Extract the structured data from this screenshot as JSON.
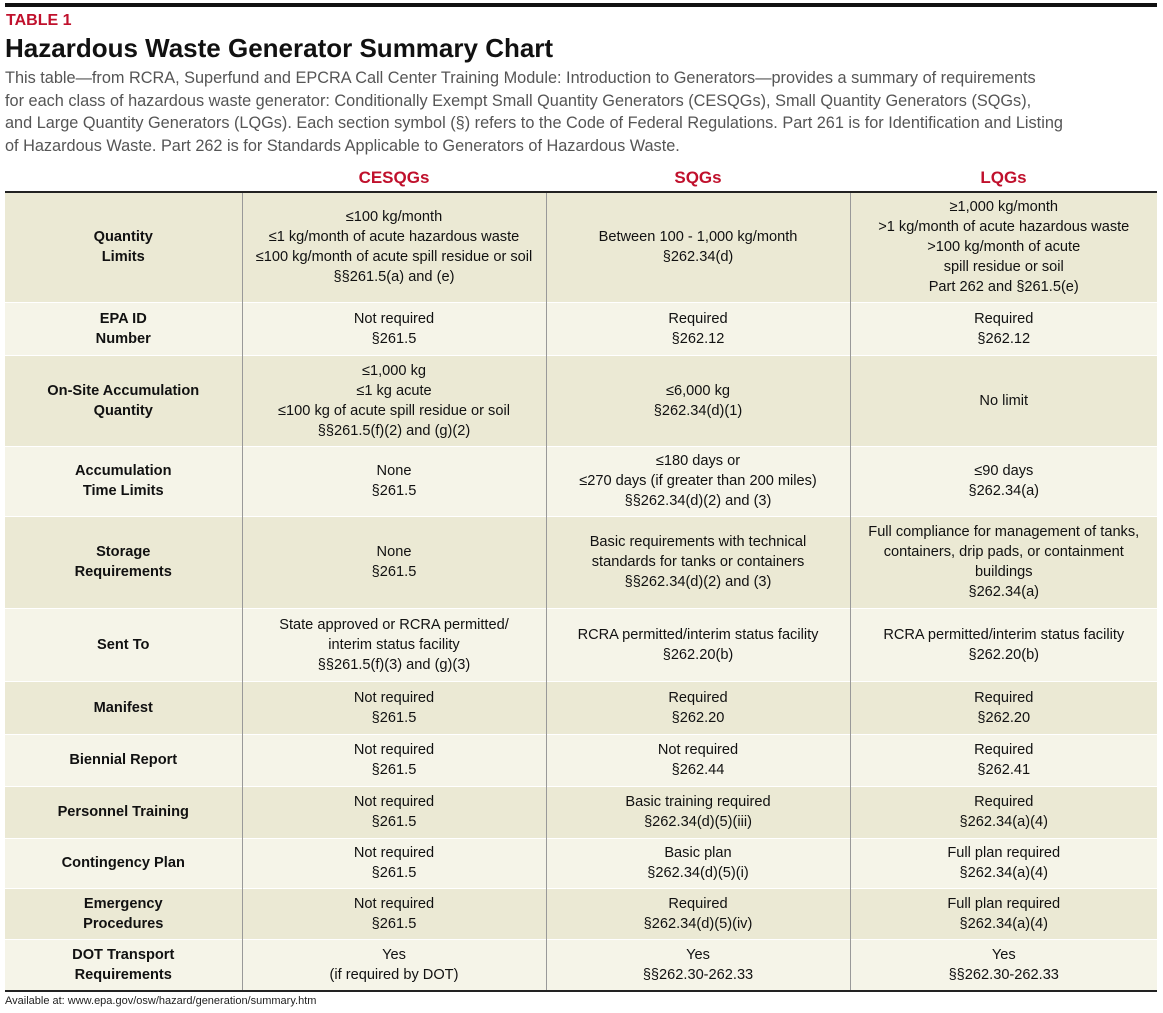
{
  "header": {
    "label": "TABLE 1",
    "title": "Hazardous Waste Generator Summary Chart",
    "intro": [
      "This table—from RCRA, Superfund and EPCRA Call Center Training Module: Introduction to Generators—provides a summary of requirements",
      "for each class of hazardous waste generator: Conditionally Exempt Small Quantity Generators (CESQGs), Small Quantity Generators (SQGs),",
      "and Large Quantity Generators (LQGs). Each section symbol (§) refers to the Code of Federal Regulations. Part 261 is for Identification and Listing",
      "of Hazardous Waste. Part 262 is for Standards Applicable to Generators of Hazardous Waste."
    ]
  },
  "table": {
    "columns": [
      "CESQGs",
      "SQGs",
      "LQGs"
    ],
    "rows": [
      {
        "label": [
          "Quantity",
          "Limits"
        ],
        "cells": [
          [
            "≤100 kg/month",
            "≤1 kg/month of acute hazardous waste",
            "≤100 kg/month of acute spill residue or soil",
            "§§261.5(a) and (e)"
          ],
          [
            "Between 100 - 1,000 kg/month",
            "§262.34(d)"
          ],
          [
            "≥1,000 kg/month",
            ">1 kg/month of acute hazardous waste",
            ">100 kg/month of acute",
            "spill residue or soil",
            "Part 262 and §261.5(e)"
          ]
        ]
      },
      {
        "label": [
          "EPA ID",
          "Number"
        ],
        "cells": [
          [
            "Not required",
            "§261.5"
          ],
          [
            "Required",
            "§262.12"
          ],
          [
            "Required",
            "§262.12"
          ]
        ]
      },
      {
        "label": [
          "On-Site Accumulation",
          "Quantity"
        ],
        "cells": [
          [
            "≤1,000 kg",
            "≤1 kg acute",
            "≤100 kg of acute spill residue or soil",
            "§§261.5(f)(2) and (g)(2)"
          ],
          [
            "≤6,000 kg",
            "§262.34(d)(1)"
          ],
          [
            "No limit"
          ]
        ]
      },
      {
        "label": [
          "Accumulation",
          "Time Limits"
        ],
        "cells": [
          [
            "None",
            "§261.5"
          ],
          [
            "≤180 days or",
            "≤270 days (if greater than 200 miles)",
            "§§262.34(d)(2) and (3)"
          ],
          [
            "≤90 days",
            "§262.34(a)"
          ]
        ]
      },
      {
        "label": [
          "Storage",
          "Requirements"
        ],
        "cells": [
          [
            "None",
            "§261.5"
          ],
          [
            "Basic requirements with technical",
            "standards for tanks or containers",
            "§§262.34(d)(2) and (3)"
          ],
          [
            "Full compliance for management of tanks,",
            "containers, drip pads, or containment",
            "buildings",
            "§262.34(a)"
          ]
        ]
      },
      {
        "label": [
          "Sent To"
        ],
        "cells": [
          [
            "State approved or RCRA permitted/",
            "interim status facility",
            "§§261.5(f)(3) and (g)(3)"
          ],
          [
            "RCRA permitted/interim status facility",
            "§262.20(b)"
          ],
          [
            "RCRA permitted/interim status facility",
            "§262.20(b)"
          ]
        ]
      },
      {
        "label": [
          "Manifest"
        ],
        "cells": [
          [
            "Not required",
            "§261.5"
          ],
          [
            "Required",
            "§262.20"
          ],
          [
            "Required",
            "§262.20"
          ]
        ]
      },
      {
        "label": [
          "Biennial Report"
        ],
        "cells": [
          [
            "Not required",
            "§261.5"
          ],
          [
            "Not required",
            "§262.44"
          ],
          [
            "Required",
            "§262.41"
          ]
        ]
      },
      {
        "label": [
          "Personnel Training"
        ],
        "cells": [
          [
            "Not required",
            "§261.5"
          ],
          [
            "Basic training required",
            "§262.34(d)(5)(iii)"
          ],
          [
            "Required",
            "§262.34(a)(4)"
          ]
        ]
      },
      {
        "label": [
          "Contingency Plan"
        ],
        "cells": [
          [
            "Not required",
            "§261.5"
          ],
          [
            "Basic plan",
            "§262.34(d)(5)(i)"
          ],
          [
            "Full plan required",
            "§262.34(a)(4)"
          ]
        ]
      },
      {
        "label": [
          "Emergency",
          "Procedures"
        ],
        "cells": [
          [
            "Not required",
            "§261.5"
          ],
          [
            "Required",
            "§262.34(d)(5)(iv)"
          ],
          [
            "Full plan required",
            "§262.34(a)(4)"
          ]
        ]
      },
      {
        "label": [
          "DOT Transport",
          "Requirements"
        ],
        "cells": [
          [
            "Yes",
            "(if required by DOT)"
          ],
          [
            "Yes",
            "§§262.30-262.33"
          ],
          [
            "Yes",
            "§§262.30-262.33"
          ]
        ]
      }
    ]
  },
  "footnote": "Available at: www.epa.gov/osw/hazard/generation/summary.htm"
}
